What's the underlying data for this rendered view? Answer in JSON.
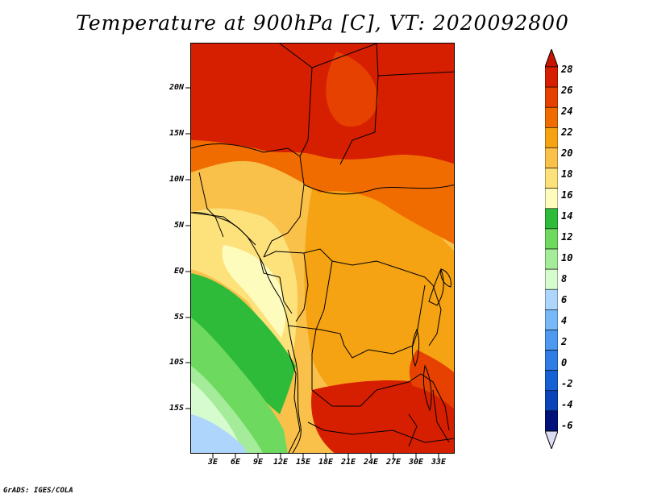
{
  "title": "Temperature at 900hPa [C], VT: 2020092800",
  "credit": "GrADS: IGES/COLA",
  "lat_labels": [
    "20N",
    "15N",
    "10N",
    "5N",
    "EQ",
    "5S",
    "10S",
    "15S"
  ],
  "lon_labels": [
    "3E",
    "6E",
    "9E",
    "12E",
    "15E",
    "18E",
    "21E",
    "24E",
    "27E",
    "30E",
    "33E"
  ],
  "colorbar": {
    "labels": [
      "28",
      "26",
      "24",
      "22",
      "20",
      "18",
      "16",
      "14",
      "12",
      "10",
      "8",
      "6",
      "4",
      "2",
      "0",
      "-2",
      "-4",
      "-6"
    ],
    "colors": [
      "#d61f00",
      "#e64100",
      "#f06c00",
      "#f5a213",
      "#f9c04a",
      "#fde27b",
      "#fefcbd",
      "#2fbb3a",
      "#6ed95f",
      "#a4ec99",
      "#d6fbcf",
      "#aed5fb",
      "#78b8f7",
      "#4d9af0",
      "#2f7ce6",
      "#1660d6",
      "#0a44b8",
      "#00127a"
    ],
    "over_color": "#c81400",
    "under_color": "#dcdcf5"
  }
}
